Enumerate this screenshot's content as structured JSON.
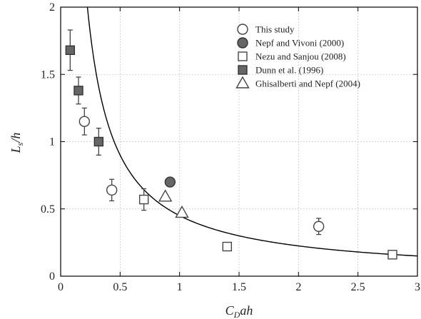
{
  "chart_data": {
    "type": "scatter",
    "title": "",
    "xlabel": {
      "main": "C",
      "sub": "D",
      "rest": "ah"
    },
    "ylabel": {
      "main": "L",
      "sub": "s",
      "rest": "/h"
    },
    "xlim": [
      0,
      3
    ],
    "ylim": [
      0,
      2
    ],
    "grid": true,
    "legend_position": "top-right",
    "x_ticks": [
      0,
      0.5,
      1,
      1.5,
      2,
      2.5,
      3
    ],
    "x_tick_labels": [
      "0",
      "0.5",
      "1",
      "1.5",
      "2",
      "2.5",
      "3"
    ],
    "y_ticks": [
      0,
      0.5,
      1,
      1.5,
      2
    ],
    "y_tick_labels": [
      "0",
      "0.5",
      "1",
      "1.5",
      "2"
    ],
    "curve": {
      "formula": "y = 0.45 / x",
      "x_start": 0.225,
      "x_end": 3.0
    },
    "series": [
      {
        "name": "This study",
        "marker": "circle-open",
        "points": [
          {
            "x": 0.2,
            "y": 1.15,
            "err": 0.1
          },
          {
            "x": 0.43,
            "y": 0.64,
            "err": 0.08
          },
          {
            "x": 2.17,
            "y": 0.37,
            "err": 0.06
          }
        ]
      },
      {
        "name": "Nepf and Vivoni (2000)",
        "marker": "circle-filled",
        "points": [
          {
            "x": 0.92,
            "y": 0.7
          }
        ]
      },
      {
        "name": "Nezu and Sanjou (2008)",
        "marker": "square-open",
        "points": [
          {
            "x": 0.7,
            "y": 0.57,
            "err": 0.08
          },
          {
            "x": 1.4,
            "y": 0.22
          },
          {
            "x": 2.79,
            "y": 0.16
          }
        ]
      },
      {
        "name": "Dunn et al. (1996)",
        "marker": "square-filled",
        "points": [
          {
            "x": 0.08,
            "y": 1.68,
            "err": 0.15
          },
          {
            "x": 0.15,
            "y": 1.38,
            "err": 0.1
          },
          {
            "x": 0.32,
            "y": 1.0,
            "err": 0.1
          }
        ]
      },
      {
        "name": "Ghisalberti and Nepf (2004)",
        "marker": "triangle-open",
        "points": [
          {
            "x": 0.88,
            "y": 0.59
          },
          {
            "x": 1.02,
            "y": 0.47
          }
        ]
      }
    ]
  }
}
